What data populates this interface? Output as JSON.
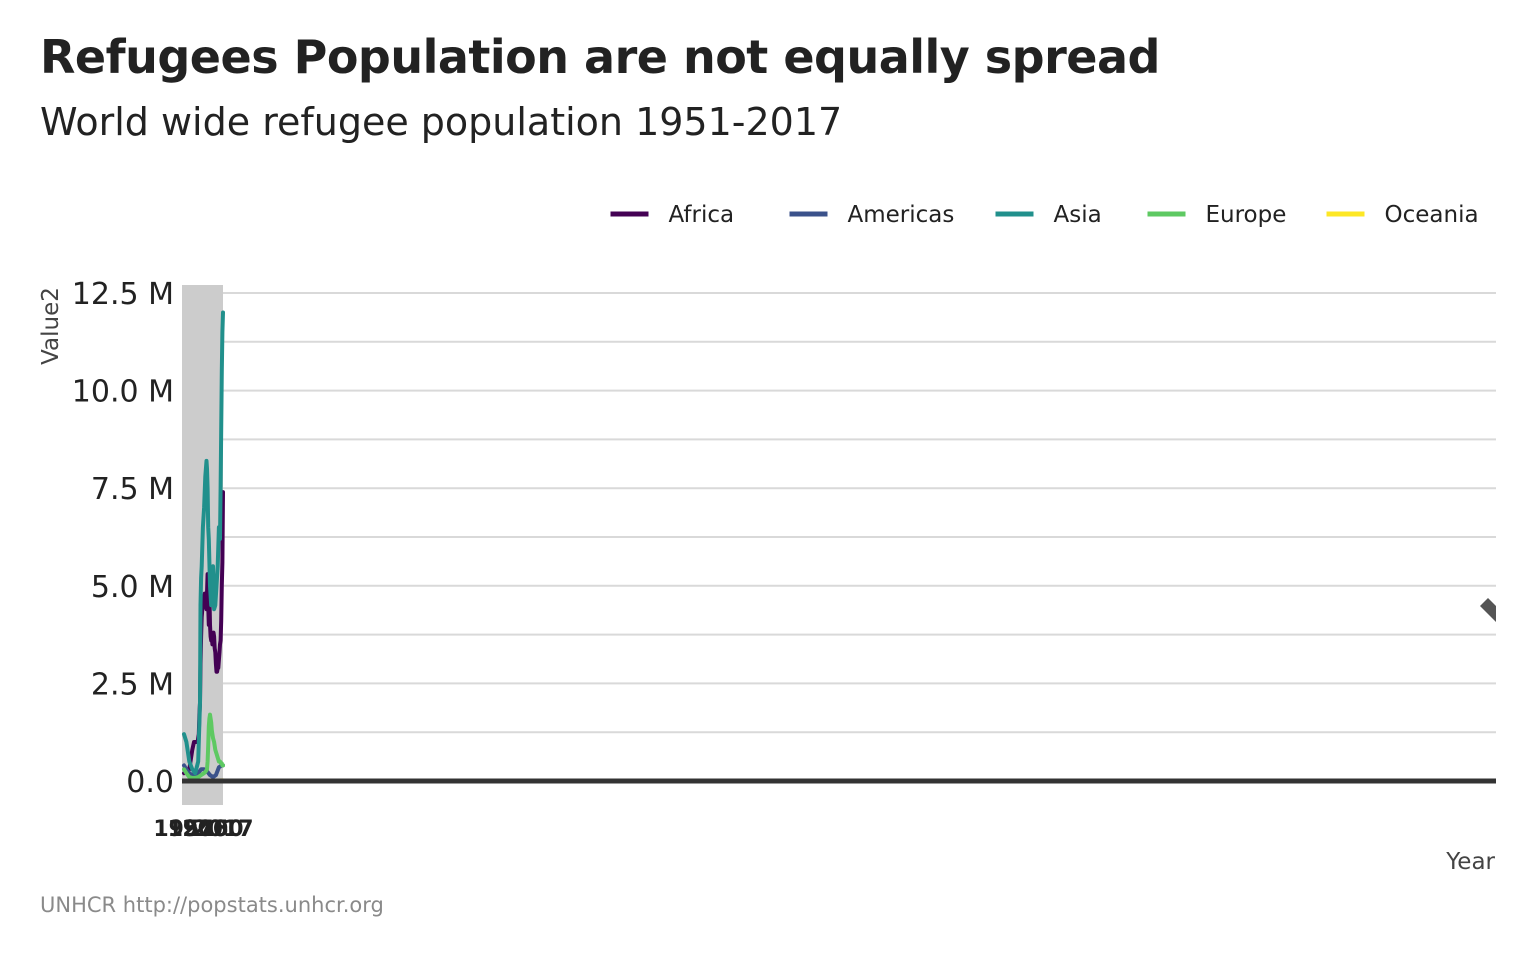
{
  "title": "Refugees Population are not equally spread",
  "subtitle": "World wide refugee population 1951-2017",
  "caption": "UNHCR http://popstats.unhcr.org",
  "chart_data": {
    "type": "line",
    "xlabel": "Year",
    "ylabel": "Value2",
    "ylim": [
      0,
      12500000
    ],
    "y_ticks": [
      0,
      2500000,
      5000000,
      7500000,
      10000000,
      12500000
    ],
    "y_tick_labels": [
      "0.0",
      "2.5 M",
      "5.0 M",
      "7.5 M",
      "10.0 M",
      "12.5 M"
    ],
    "x_range": [
      1951,
      2017
    ],
    "x_ticks": [
      1951,
      1975,
      2000,
      2017
    ],
    "x_tick_labels": [
      "1951",
      "1975",
      "2000",
      "2017"
    ],
    "grid": true,
    "legend_position": "top-right",
    "series": [
      {
        "name": "Africa",
        "color": "#440154",
        "x": [
          1951,
          1955,
          1960,
          1962,
          1965,
          1968,
          1970,
          1972,
          1974,
          1975,
          1976,
          1977,
          1978,
          1979,
          1980,
          1981,
          1982,
          1983,
          1984,
          1985,
          1986,
          1987,
          1988,
          1989,
          1990,
          1991,
          1992,
          1993,
          1994,
          1995,
          1996,
          1997,
          1998,
          1999,
          2000,
          2001,
          2002,
          2003,
          2004,
          2005,
          2006,
          2007,
          2008,
          2009,
          2010,
          2011,
          2012,
          2013,
          2014,
          2015,
          2016,
          2017
        ],
        "values": [
          200000,
          250000,
          300000,
          500000,
          800000,
          1000000,
          1000000,
          1000000,
          1000000,
          1100000,
          1200000,
          1700000,
          2000000,
          3000000,
          3700000,
          4200000,
          4400000,
          4500000,
          4600000,
          4700000,
          4800000,
          4700000,
          4500000,
          4400000,
          4800000,
          5300000,
          4500000,
          4000000,
          4800000,
          4000000,
          3700000,
          3600000,
          3700000,
          3500000,
          3600000,
          3800000,
          3700000,
          3400000,
          3300000,
          3000000,
          2800000,
          2800000,
          2900000,
          2900000,
          3100000,
          3300000,
          3500000,
          3600000,
          4100000,
          5000000,
          5600000,
          7400000
        ]
      },
      {
        "name": "Americas",
        "color": "#3b528b",
        "x": [
          1951,
          1955,
          1960,
          1965,
          1970,
          1975,
          1980,
          1985,
          1990,
          1995,
          2000,
          2005,
          2010,
          2015,
          2017
        ],
        "values": [
          400000,
          300000,
          200000,
          150000,
          150000,
          200000,
          300000,
          300000,
          250000,
          150000,
          100000,
          150000,
          350000,
          400000,
          400000
        ]
      },
      {
        "name": "Asia",
        "color": "#21908c",
        "x": [
          1951,
          1955,
          1960,
          1965,
          1970,
          1975,
          1978,
          1979,
          1980,
          1981,
          1982,
          1983,
          1985,
          1987,
          1989,
          1990,
          1991,
          1992,
          1993,
          1995,
          1997,
          1999,
          2000,
          2002,
          2004,
          2006,
          2008,
          2010,
          2012,
          2013,
          2014,
          2015,
          2016,
          2017
        ],
        "values": [
          1200000,
          1000000,
          500000,
          300000,
          200000,
          500000,
          2000000,
          4500000,
          5200000,
          5500000,
          6000000,
          6500000,
          7000000,
          7800000,
          8200000,
          8000000,
          7500000,
          6500000,
          6200000,
          5000000,
          4500000,
          5200000,
          5500000,
          4400000,
          4500000,
          5000000,
          5500000,
          6500000,
          6200000,
          7500000,
          9000000,
          10500000,
          11500000,
          12000000
        ]
      },
      {
        "name": "Europe",
        "color": "#5ec962",
        "x": [
          1951,
          1955,
          1960,
          1965,
          1970,
          1975,
          1980,
          1985,
          1988,
          1990,
          1991,
          1992,
          1993,
          1994,
          1995,
          1996,
          1997,
          1998,
          1999,
          2000,
          2002,
          2004,
          2006,
          2008,
          2010,
          2012,
          2014,
          2015,
          2016,
          2017
        ],
        "values": [
          300000,
          200000,
          100000,
          80000,
          80000,
          100000,
          150000,
          200000,
          250000,
          300000,
          500000,
          900000,
          1400000,
          1600000,
          1700000,
          1600000,
          1500000,
          1300000,
          1200000,
          1100000,
          1000000,
          800000,
          700000,
          600000,
          500000,
          500000,
          450000,
          450000,
          400000,
          400000
        ]
      },
      {
        "name": "Oceania",
        "color": "#fde725",
        "x": [
          1951,
          1970,
          1990,
          2000,
          2010,
          2017
        ],
        "values": [
          5000,
          5000,
          8000,
          10000,
          12000,
          15000
        ]
      }
    ]
  }
}
